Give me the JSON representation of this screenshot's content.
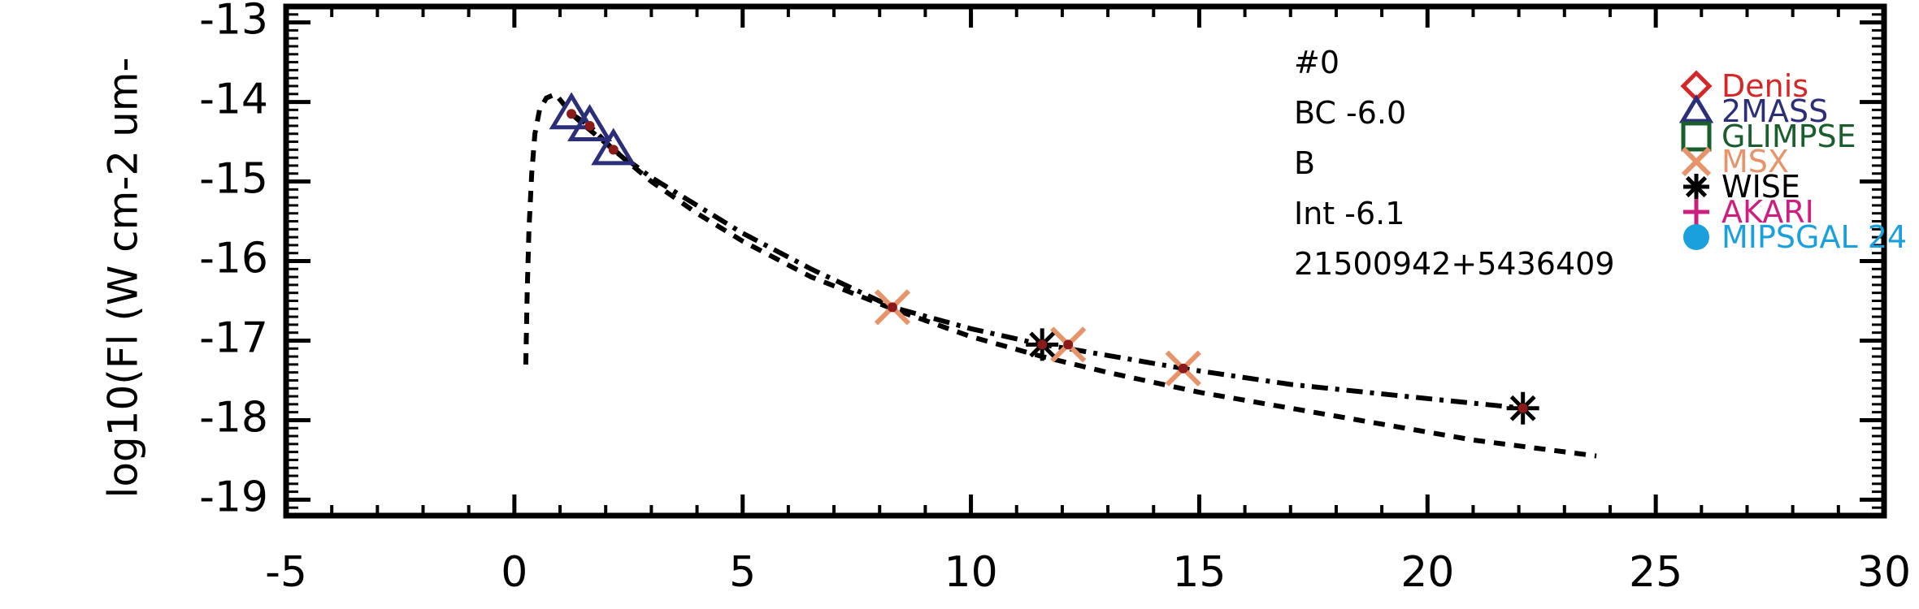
{
  "chart_data": {
    "type": "scatter",
    "title": "",
    "xlabel": "",
    "ylabel": "log10(Fl (W cm-2 um-",
    "xlim": [
      -5,
      30
    ],
    "ylim": [
      -19.2,
      -12.8
    ],
    "x_ticks": [
      "-5",
      "0",
      "5",
      "10",
      "15",
      "20",
      "25",
      "30"
    ],
    "y_ticks": [
      "-13",
      "-14",
      "-15",
      "-16",
      "-17",
      "-18",
      "-19"
    ],
    "annotations": [
      "#0",
      "BC -6.0",
      "B",
      "Int -6.1",
      "21500942+5436409"
    ],
    "legend": [
      {
        "label": "Denis",
        "marker": "diamond",
        "color": "#d62728"
      },
      {
        "label": "2MASS",
        "marker": "triangle",
        "color": "#2b2f7a"
      },
      {
        "label": "GLIMPSE",
        "marker": "square",
        "color": "#1a5e2e"
      },
      {
        "label": "MSX",
        "marker": "x",
        "color": "#e8946a"
      },
      {
        "label": "WISE",
        "marker": "asterisk",
        "color": "#000000"
      },
      {
        "label": "AKARI",
        "marker": "plus",
        "color": "#cc1f80"
      },
      {
        "label": "MIPSGAL 24",
        "marker": "circle",
        "color": "#1aa0dc"
      }
    ],
    "series": [
      {
        "marker": "triangle",
        "color": "#2b2f7a",
        "x": [
          1.25,
          1.65,
          2.17
        ],
        "y": [
          -14.15,
          -14.3,
          -14.6
        ]
      },
      {
        "marker": "x",
        "color": "#e8946a",
        "x": [
          8.28,
          12.13,
          14.65
        ],
        "y": [
          -16.58,
          -17.05,
          -17.35
        ]
      },
      {
        "marker": "asterisk",
        "color": "#000000",
        "x": [
          11.56,
          22.09
        ],
        "y": [
          -17.05,
          -17.85
        ]
      }
    ],
    "model_curves": [
      {
        "style": "dashed",
        "x": [
          0.25,
          0.28,
          0.32,
          0.38,
          0.45,
          0.55,
          0.7,
          0.9,
          1.25,
          1.65,
          2.17,
          3.0,
          4.0,
          5.0,
          6.5,
          8.28,
          10.0,
          11.56,
          13.0,
          15.0,
          18.0,
          21.0,
          23.7
        ],
        "y": [
          -17.3,
          -16.4,
          -15.6,
          -14.9,
          -14.4,
          -14.1,
          -13.95,
          -13.9,
          -14.15,
          -14.35,
          -14.6,
          -15.0,
          -15.4,
          -15.75,
          -16.2,
          -16.6,
          -16.95,
          -17.2,
          -17.4,
          -17.65,
          -17.95,
          -18.25,
          -18.45
        ]
      },
      {
        "style": "dash-dot",
        "x": [
          1.25,
          1.65,
          2.17,
          3.0,
          4.0,
          5.0,
          6.5,
          8.28,
          10.0,
          11.56,
          12.13,
          14.65,
          17.0,
          19.5,
          22.09
        ],
        "y": [
          -14.15,
          -14.3,
          -14.6,
          -14.95,
          -15.3,
          -15.65,
          -16.1,
          -16.58,
          -16.85,
          -17.05,
          -17.1,
          -17.35,
          -17.55,
          -17.7,
          -17.85
        ]
      }
    ]
  }
}
